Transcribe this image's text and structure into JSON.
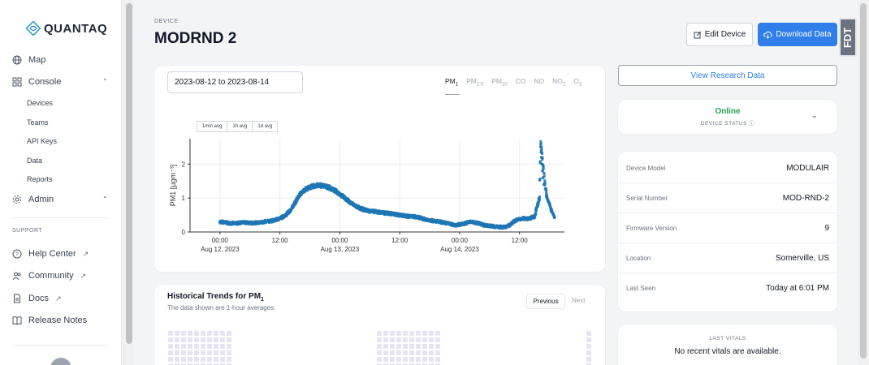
{
  "brand": {
    "name": "QUANTAQ",
    "accent": "#2f7ee9"
  },
  "sidebar": {
    "items": [
      {
        "label": "Map",
        "icon": "globe-icon"
      },
      {
        "label": "Console",
        "icon": "grid-icon"
      },
      {
        "label": "Admin",
        "icon": "gear-icon"
      }
    ],
    "console_sub": [
      "Devices",
      "Teams",
      "API Keys",
      "Data",
      "Reports"
    ],
    "support_heading": "SUPPORT",
    "support": [
      {
        "label": "Help Center",
        "icon": "help-circle-icon"
      },
      {
        "label": "Community",
        "icon": "users-icon"
      },
      {
        "label": "Docs",
        "icon": "document-icon"
      },
      {
        "label": "Release Notes",
        "icon": "book-icon"
      }
    ]
  },
  "header": {
    "device_label": "DEVICE",
    "title": "MODRND 2",
    "edit_label": "Edit Device",
    "download_label": "Download Data",
    "badge": "FDT"
  },
  "chart_card": {
    "date_range": "2023-08-12 to 2023-08-14",
    "tabs": [
      {
        "base": "PM",
        "sub": "1",
        "active": true
      },
      {
        "base": "PM",
        "sub": "2.5"
      },
      {
        "base": "PM",
        "sub": "10"
      },
      {
        "base": "CO",
        "sub": ""
      },
      {
        "base": "NO",
        "sub": ""
      },
      {
        "base": "NO",
        "sub": "2"
      },
      {
        "base": "O",
        "sub": "3"
      }
    ],
    "avg_buttons": [
      "1min avg",
      "1h avg",
      "1d avg"
    ]
  },
  "chart_data": {
    "type": "scatter",
    "ylabel": "PM1 [µgm⁻³]",
    "ylim": [
      0,
      2.75
    ],
    "yticks": [
      0,
      1,
      2
    ],
    "x_ticks": [
      {
        "time": "00:00",
        "date": "Aug 12, 2023",
        "hour": 0
      },
      {
        "time": "12:00",
        "date": "",
        "hour": 12
      },
      {
        "time": "00:00",
        "date": "Aug 13, 2023",
        "hour": 24
      },
      {
        "time": "12:00",
        "date": "",
        "hour": 36
      },
      {
        "time": "00:00",
        "date": "Aug 14, 2023",
        "hour": 48
      },
      {
        "time": "12:00",
        "date": "",
        "hour": 60
      }
    ],
    "xlim_hours": [
      -6,
      69
    ],
    "color": "#1f77b4",
    "series": [
      {
        "x": [
          0,
          1,
          2,
          3,
          4,
          5,
          6,
          7,
          8,
          9,
          10,
          11,
          12,
          13,
          14,
          15,
          16,
          17,
          18,
          19,
          20,
          21,
          22,
          23,
          24,
          25,
          26,
          27,
          28,
          29,
          30,
          31,
          32,
          33,
          34,
          35,
          36,
          37,
          38,
          39,
          40,
          41,
          42,
          43,
          44,
          45,
          46,
          47,
          48,
          49,
          50,
          51,
          52,
          53,
          54,
          55,
          56,
          57,
          58,
          59,
          60,
          61,
          62,
          63,
          64,
          64.3,
          64.6,
          65,
          65.5,
          66,
          66.5,
          67
        ],
        "y": [
          0.3,
          0.28,
          0.26,
          0.25,
          0.27,
          0.28,
          0.26,
          0.27,
          0.28,
          0.3,
          0.32,
          0.35,
          0.4,
          0.48,
          0.62,
          0.85,
          1.1,
          1.25,
          1.32,
          1.36,
          1.38,
          1.35,
          1.3,
          1.22,
          1.12,
          1.0,
          0.88,
          0.78,
          0.7,
          0.65,
          0.62,
          0.6,
          0.58,
          0.56,
          0.55,
          0.52,
          0.5,
          0.48,
          0.46,
          0.45,
          0.42,
          0.38,
          0.35,
          0.32,
          0.3,
          0.27,
          0.24,
          0.2,
          0.22,
          0.25,
          0.3,
          0.28,
          0.25,
          0.2,
          0.18,
          0.16,
          0.15,
          0.14,
          0.2,
          0.32,
          0.38,
          0.4,
          0.4,
          0.45,
          1.0,
          2.6,
          2.2,
          1.5,
          1.0,
          0.8,
          0.6,
          0.45
        ]
      }
    ]
  },
  "trends": {
    "title": "Historical Trends for PM",
    "title_sub": "1",
    "subtitle": "The data shown are 1-hour averages.",
    "prev_label": "Previous",
    "next_label": "Next"
  },
  "right": {
    "research_label": "View Research Data",
    "status": "Online",
    "status_color": "#22a555",
    "status_label": "DEVICE STATUS",
    "info": [
      {
        "k": "Device Model",
        "v": "MODULAIR"
      },
      {
        "k": "Serial Number",
        "v": "MOD-RND-2"
      },
      {
        "k": "Firmware Version",
        "v": "9"
      },
      {
        "k": "Location",
        "v": "Somerville, US"
      },
      {
        "k": "Last Seen",
        "v": "Today at 6:01 PM"
      }
    ],
    "vitals_label": "LAST VITALS",
    "vitals_msg": "No recent vitals are available."
  }
}
